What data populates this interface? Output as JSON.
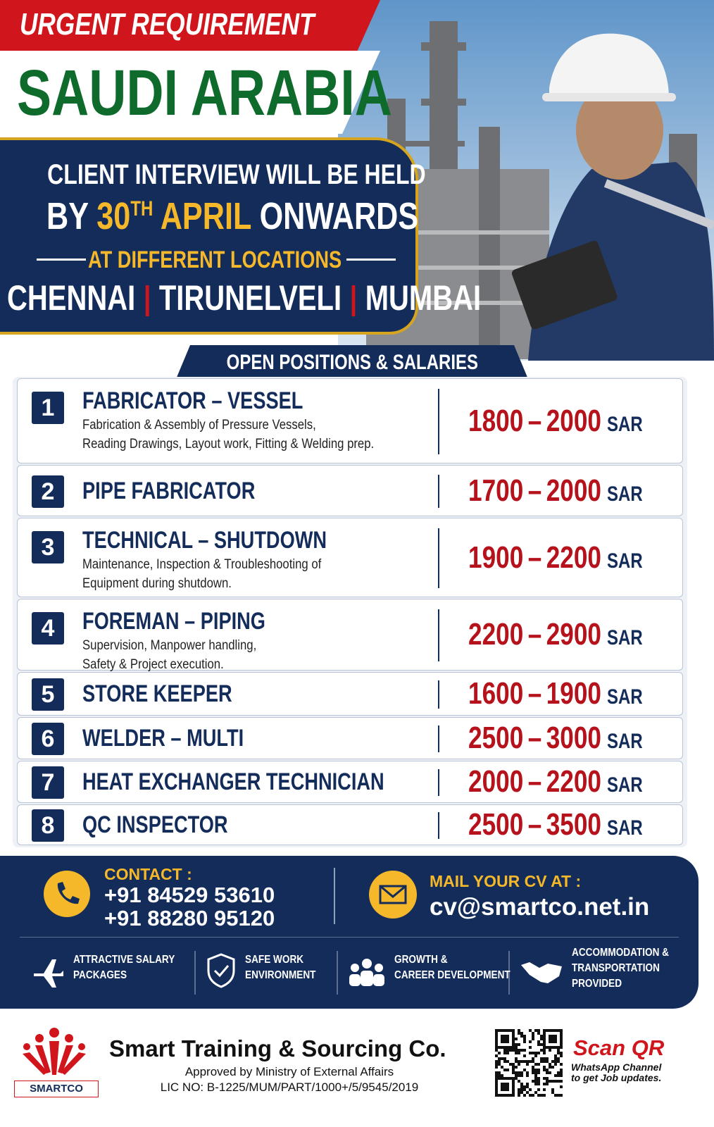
{
  "header": {
    "urgent": "URGENT REQUIREMENT",
    "country": "SAUDI ARABIA",
    "interview_line": "CLIENT INTERVIEW WILL BE HELD",
    "by": "BY",
    "day": "30",
    "day_suffix": "TH",
    "month": "APRIL",
    "onwards": "ONWARDS",
    "locations_label": "AT DIFFERENT LOCATIONS",
    "locations": [
      "CHENNAI",
      "TIRUNELVELI",
      "MUMBAI"
    ]
  },
  "positions": {
    "title": "OPEN POSITIONS & SALARIES",
    "range_separator": "–",
    "items": [
      {
        "number": 1,
        "title": "FABRICATOR – VESSEL",
        "description": [
          "Fabrication & Assembly of Pressure Vessels,",
          "Reading Drawings, Layout work, Fitting & Welding prep."
        ],
        "salary_min": 1800,
        "salary_max": 2000,
        "currency": "SAR"
      },
      {
        "number": 2,
        "title": "PIPE FABRICATOR",
        "description": [],
        "salary_min": 1700,
        "salary_max": 2000,
        "currency": "SAR"
      },
      {
        "number": 3,
        "title": "TECHNICAL – SHUTDOWN",
        "description": [
          "Maintenance, Inspection & Troubleshooting of",
          "Equipment during shutdown."
        ],
        "salary_min": 1900,
        "salary_max": 2200,
        "currency": "SAR"
      },
      {
        "number": 4,
        "title": "FOREMAN – PIPING",
        "description": [
          "Supervision, Manpower handling,",
          "Safety & Project execution."
        ],
        "salary_min": 2200,
        "salary_max": 2900,
        "currency": "SAR"
      },
      {
        "number": 5,
        "title": "STORE KEEPER",
        "description": [],
        "salary_min": 1600,
        "salary_max": 1900,
        "currency": "SAR"
      },
      {
        "number": 6,
        "title": "WELDER – MULTI",
        "description": [],
        "salary_min": 2500,
        "salary_max": 3000,
        "currency": "SAR"
      },
      {
        "number": 7,
        "title": "HEAT EXCHANGER TECHNICIAN",
        "description": [],
        "salary_min": 2000,
        "salary_max": 2200,
        "currency": "SAR"
      },
      {
        "number": 8,
        "title": "QC INSPECTOR",
        "description": [],
        "salary_min": 2500,
        "salary_max": 3500,
        "currency": "SAR"
      }
    ]
  },
  "contact": {
    "label": "CONTACT :",
    "phones": [
      "+91 84529 53610",
      "+91 88280 95120"
    ],
    "mail_label": "MAIL YOUR CV AT :",
    "email": "cv@smartco.net.in"
  },
  "benefits": [
    [
      "ATTRACTIVE SALARY",
      "PACKAGES"
    ],
    [
      "SAFE WORK",
      "ENVIRONMENT"
    ],
    [
      "GROWTH &",
      "CAREER DEVELOPMENT"
    ],
    [
      "ACCOMMODATION &",
      "TRANSPORTATION",
      "PROVIDED"
    ]
  ],
  "footer": {
    "logo_text": "SMARTCO",
    "company": "Smart Training & Sourcing Co.",
    "approval": "Approved by Ministry of External Affairs",
    "license": "LIC NO: B-1225/MUM/PART/1000+/5/9545/2019",
    "qr_title": "Scan QR",
    "qr_caption": [
      "WhatsApp Channel",
      "to get Job updates."
    ]
  }
}
